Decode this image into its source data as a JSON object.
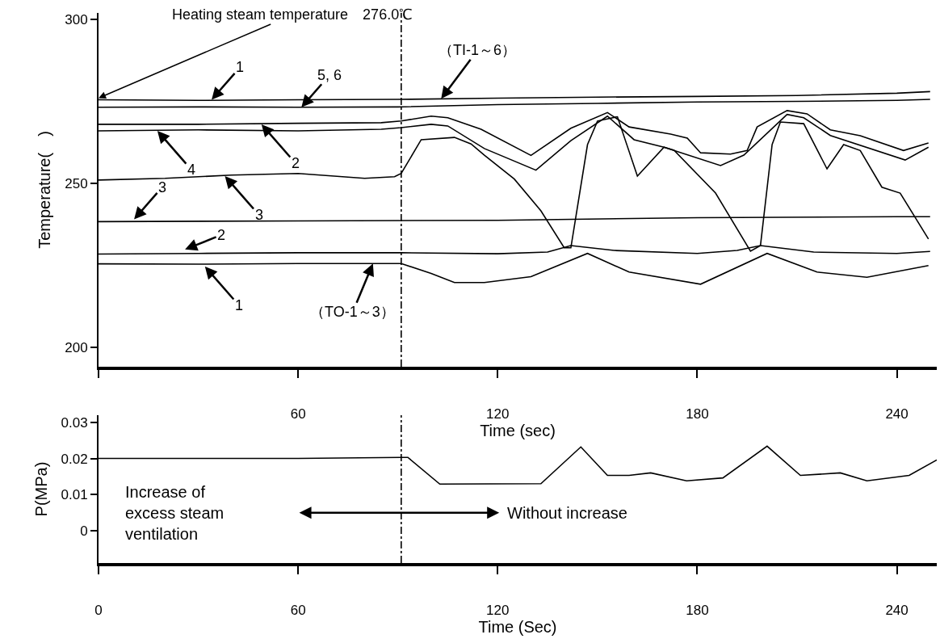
{
  "chart_data": [
    {
      "type": "line",
      "xlabel": "Time (sec)",
      "ylabel": "Temperature(　)",
      "xlim": [
        0,
        252
      ],
      "xticks": [
        {
          "value": 0,
          "label": null
        },
        60,
        120,
        180,
        240
      ],
      "ylim": [
        194,
        302
      ],
      "yticks": [
        200,
        250,
        300
      ],
      "grid": false,
      "marker": "none",
      "line_style": "solid",
      "series": [
        {
          "color": "#000000",
          "x": [
            0,
            30,
            60,
            90,
            120,
            150,
            180,
            210,
            240,
            250
          ],
          "values": [
            275.5,
            275.3,
            275.5,
            275.6,
            276,
            276.3,
            276.5,
            276.8,
            277.5,
            278
          ]
        },
        {
          "color": "#000000",
          "x": [
            0,
            30,
            60,
            90,
            120,
            150,
            180,
            210,
            240,
            250
          ],
          "values": [
            273.2,
            273.3,
            273.2,
            273.3,
            274,
            274.4,
            274.8,
            275,
            275.3,
            275.6
          ]
        },
        {
          "color": "#000000",
          "x": [
            0,
            30,
            60,
            85,
            91,
            100,
            105,
            115,
            130,
            142,
            153,
            159.5,
            172,
            177,
            181,
            190,
            195,
            198,
            207,
            213,
            220,
            229,
            242,
            249.5
          ],
          "values": [
            268,
            268,
            268.3,
            268.5,
            269,
            270.5,
            270,
            266.5,
            258.5,
            266.8,
            271.6,
            267.2,
            265,
            263.8,
            259.3,
            258.9,
            260,
            267.2,
            272.2,
            271.2,
            266.3,
            264.5,
            260,
            262.3
          ]
        },
        {
          "color": "#000000",
          "x": [
            0,
            30,
            60,
            85,
            91,
            100,
            105,
            116,
            131.5,
            142,
            153,
            161,
            170,
            187,
            194,
            207,
            212,
            220,
            242.5,
            249.5
          ],
          "values": [
            266,
            266.3,
            266,
            266.5,
            267,
            268,
            267.5,
            260.6,
            254,
            263,
            270.5,
            263.3,
            261,
            255.4,
            258.6,
            271,
            270,
            264.6,
            257.1,
            261
          ]
        },
        {
          "color": "#000000",
          "x": [
            0,
            20,
            40,
            60,
            80,
            89,
            91,
            97,
            107,
            112,
            116,
            125,
            133,
            140,
            142,
            147,
            150,
            156,
            162,
            170,
            173,
            185.5,
            196,
            199,
            202.5,
            205,
            212,
            219,
            224,
            229,
            235.5,
            241,
            249.5
          ],
          "values": [
            251,
            251.5,
            252.5,
            253,
            251.5,
            252,
            253,
            263.3,
            264,
            262,
            258.6,
            251.3,
            241.6,
            230.3,
            230.3,
            261.8,
            269,
            270.3,
            252.2,
            261,
            260.1,
            247,
            229.3,
            231,
            261.8,
            268.7,
            268.2,
            254.4,
            261.8,
            260,
            248.8,
            247,
            233
          ]
        },
        {
          "color": "#000000",
          "x": [
            0,
            60,
            120,
            180,
            240,
            250
          ],
          "values": [
            238.3,
            238.5,
            238.7,
            239.5,
            239.8,
            239.8
          ]
        },
        {
          "color": "#000000",
          "x": [
            0,
            30,
            60,
            91,
            120,
            135,
            142,
            155,
            180,
            192,
            199,
            215,
            240,
            250
          ],
          "values": [
            228.4,
            228.6,
            228.8,
            228.8,
            228.5,
            229,
            231,
            229.5,
            228.6,
            229.5,
            231,
            229,
            228.6,
            229.2
          ]
        },
        {
          "color": "#000000",
          "x": [
            0,
            30,
            60,
            91,
            100,
            107,
            116,
            130,
            147,
            159.5,
            181,
            201,
            216,
            231,
            249.5
          ],
          "values": [
            225.4,
            225.3,
            225.5,
            225.5,
            222.5,
            219.7,
            219.7,
            221.5,
            228.6,
            222.9,
            219.2,
            228.6,
            222.9,
            221.3,
            224.9
          ]
        }
      ],
      "ref_lines": [
        {
          "axis": "x",
          "value": 91,
          "color": "#000000",
          "line_style": "dashed"
        }
      ],
      "annotations": [
        {
          "text": "Heating steam temperature　276.0℃",
          "x": 0,
          "y": 276
        },
        {
          "text": "1",
          "x": 34,
          "y": 275.5
        },
        {
          "text": "5, 6",
          "x": 61,
          "y": 273.2
        },
        {
          "text": "（TI-1～6）",
          "x": 103,
          "y": 275.8
        },
        {
          "text": "4",
          "x": 17.7,
          "y": 266
        },
        {
          "text": "2",
          "x": 49,
          "y": 268
        },
        {
          "text": "3",
          "x": 38,
          "y": 252.2
        },
        {
          "text": "3",
          "x": 10.7,
          "y": 239
        },
        {
          "text": "2",
          "x": 26,
          "y": 229.8
        },
        {
          "text": "1",
          "x": 32,
          "y": 224.6
        },
        {
          "text": "（TO-1～3）",
          "x": 82.5,
          "y": 225.5
        }
      ]
    },
    {
      "type": "line",
      "xlabel": "Time (Sec)",
      "ylabel": "P(MPa)",
      "xlim": [
        0,
        252
      ],
      "xticks": [
        0,
        60,
        120,
        180,
        240
      ],
      "ylim": [
        -0.009,
        0.032
      ],
      "yticks": [
        0,
        0.01,
        0.02,
        0.03
      ],
      "grid": false,
      "marker": "none",
      "line_style": "solid",
      "series": [
        {
          "color": "#000000",
          "x": [
            0,
            30,
            60,
            91,
            93,
            102.6,
            133,
            145,
            153,
            159.5,
            166,
            176.8,
            187.7,
            201,
            211,
            223,
            231,
            243.7,
            252
          ],
          "values": [
            0.02,
            0.02,
            0.02,
            0.0203,
            0.0203,
            0.0129,
            0.013,
            0.0232,
            0.0153,
            0.0153,
            0.016,
            0.0138,
            0.0146,
            0.0234,
            0.0153,
            0.016,
            0.0138,
            0.0153,
            0.0196
          ]
        }
      ],
      "ref_lines": [
        {
          "axis": "x",
          "value": 91,
          "color": "#000000",
          "line_style": "dashed"
        }
      ],
      "annotations": [
        "Increase of\nexcess steam\nventilation",
        "Without increase"
      ]
    }
  ]
}
